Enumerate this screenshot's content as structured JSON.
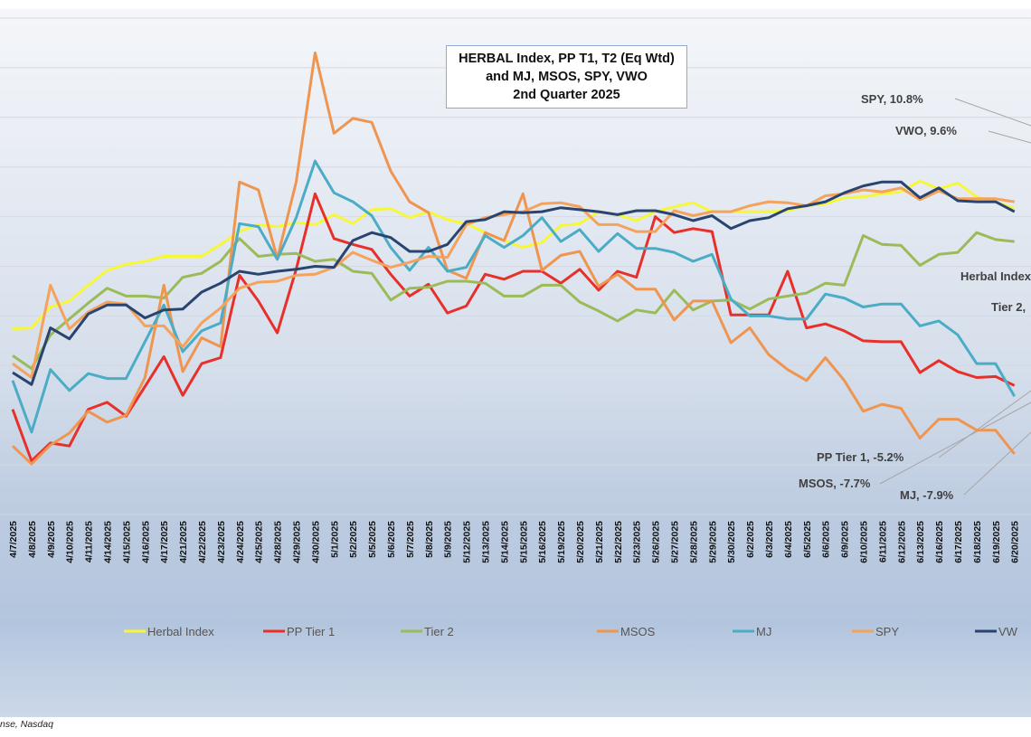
{
  "chart_data": {
    "type": "line",
    "title": [
      "HERBAL Index, PP T1, T2  (Eq Wtd)",
      "and MJ, MSOS, SPY, VWO",
      "2nd Quarter 2025"
    ],
    "xlabel": "",
    "ylabel": "",
    "y_unit": "%",
    "ylim": [
      -25,
      25
    ],
    "grid": true,
    "y_tick_labels_shown": false,
    "legend_position": "bottom",
    "categories": [
      "4/7/2025",
      "4/8/2025",
      "4/9/2025",
      "4/10/2025",
      "4/11/2025",
      "4/14/2025",
      "4/15/2025",
      "4/16/2025",
      "4/17/2025",
      "4/21/2025",
      "4/22/2025",
      "4/23/2025",
      "4/24/2025",
      "4/25/2025",
      "4/28/2025",
      "4/29/2025",
      "4/30/2025",
      "5/1/2025",
      "5/2/2025",
      "5/5/2025",
      "5/6/2025",
      "5/7/2025",
      "5/8/2025",
      "5/9/2025",
      "5/12/2025",
      "5/13/2025",
      "5/14/2025",
      "5/15/2025",
      "5/16/2025",
      "5/19/2025",
      "5/20/2025",
      "5/21/2025",
      "5/22/2025",
      "5/23/2025",
      "5/26/2025",
      "5/27/2025",
      "5/28/2025",
      "5/29/2025",
      "5/30/2025",
      "6/2/2025",
      "6/3/2025",
      "6/4/2025",
      "6/5/2025",
      "6/6/2025",
      "6/9/2025",
      "6/10/2025",
      "6/11/2025",
      "6/12/2025",
      "6/13/2025",
      "6/16/2025",
      "6/17/2025",
      "6/18/2025",
      "6/19/2025",
      "6/20/2025"
    ],
    "series": [
      {
        "name": "Herbal Index",
        "color": "#f7f73a",
        "values": [
          -6.3,
          -6.2,
          -4.1,
          -3.5,
          -1.9,
          -0.4,
          0.2,
          0.5,
          1.0,
          1.0,
          1.0,
          2.2,
          3.5,
          4.2,
          4.0,
          4.4,
          4.2,
          5.2,
          4.3,
          5.7,
          5.8,
          4.9,
          5.5,
          4.7,
          4.3,
          3.4,
          2.6,
          1.9,
          2.4,
          4.1,
          4.3,
          5.5,
          5.2,
          4.6,
          5.5,
          6.0,
          6.4,
          5.5,
          5.5,
          5.5,
          5.5,
          5.6,
          6.1,
          6.3,
          6.9,
          7.0,
          7.3,
          7.5,
          8.6,
          7.8,
          8.4,
          7.0,
          6.5,
          5.8
        ]
      },
      {
        "name": "PP Tier 1",
        "color": "#e8302a",
        "values": [
          -14.4,
          -19.6,
          -17.8,
          -18.1,
          -14.4,
          -13.7,
          -15.1,
          -12.1,
          -9.1,
          -13.0,
          -9.8,
          -9.2,
          -0.9,
          -3.5,
          -6.7,
          -0.3,
          7.3,
          2.8,
          2.2,
          1.7,
          -0.8,
          -3.0,
          -1.8,
          -4.7,
          -4.0,
          -0.8,
          -1.3,
          -0.5,
          -0.5,
          -1.7,
          -0.3,
          -2.4,
          -0.5,
          -1.1,
          5.0,
          3.4,
          3.8,
          3.5,
          -4.9,
          -4.9,
          -4.9,
          -0.5,
          -6.2,
          -5.8,
          -6.5,
          -7.5,
          -7.6,
          -7.6,
          -10.7,
          -9.5,
          -10.6,
          -11.2,
          -11.1,
          -12.0
        ]
      },
      {
        "name": "Tier 2",
        "color": "#9bbb59",
        "values": [
          -9.0,
          -10.3,
          -6.9,
          -5.3,
          -3.7,
          -2.2,
          -3.0,
          -3.0,
          -3.2,
          -1.1,
          -0.7,
          0.5,
          2.8,
          1.0,
          1.2,
          1.3,
          0.5,
          0.7,
          -0.5,
          -0.7,
          -3.4,
          -2.2,
          -2.1,
          -1.5,
          -1.5,
          -1.7,
          -3.0,
          -3.0,
          -1.9,
          -1.9,
          -3.6,
          -4.5,
          -5.5,
          -4.4,
          -4.7,
          -2.4,
          -4.4,
          -3.5,
          -3.4,
          -4.3,
          -3.3,
          -3.0,
          -2.7,
          -1.7,
          -1.9,
          3.1,
          2.2,
          2.1,
          0.1,
          1.2,
          1.4,
          3.4,
          2.7,
          2.5
        ]
      },
      {
        "name": "MSOS",
        "color": "#ef9550",
        "values": [
          -18.1,
          -19.9,
          -18.0,
          -16.8,
          -14.6,
          -15.7,
          -15.0,
          -11.2,
          -1.9,
          -10.6,
          -7.2,
          -8.1,
          8.5,
          7.7,
          0.8,
          8.5,
          21.5,
          13.4,
          14.9,
          14.5,
          9.6,
          6.5,
          5.4,
          -0.4,
          -1.2,
          3.4,
          2.6,
          7.3,
          -0.4,
          1.1,
          1.5,
          -2.0,
          -0.8,
          -2.3,
          -2.3,
          -5.4,
          -3.5,
          -3.5,
          -7.7,
          -6.2,
          -8.9,
          -10.4,
          -11.5,
          -9.2,
          -11.5,
          -14.6,
          -13.9,
          -14.3,
          -17.3,
          -15.4,
          -15.4,
          -16.5,
          -16.5,
          -18.9
        ]
      },
      {
        "name": "MJ",
        "color": "#4bacc6",
        "values": [
          -11.5,
          -16.7,
          -10.4,
          -12.5,
          -10.8,
          -11.3,
          -11.3,
          -7.6,
          -3.9,
          -8.6,
          -6.5,
          -5.7,
          4.3,
          4.0,
          0.7,
          4.9,
          10.6,
          7.4,
          6.5,
          5.1,
          1.9,
          -0.4,
          1.9,
          -0.5,
          -0.1,
          3.1,
          1.9,
          3.1,
          4.9,
          2.5,
          3.7,
          1.5,
          3.3,
          1.8,
          1.8,
          1.4,
          0.5,
          1.2,
          -3.3,
          -5.0,
          -5.0,
          -5.3,
          -5.3,
          -2.8,
          -3.2,
          -4.1,
          -3.8,
          -3.8,
          -6.0,
          -5.5,
          -6.9,
          -9.8,
          -9.8,
          -13.1
        ]
      },
      {
        "name": "SPY",
        "color": "#f4a25c",
        "values": [
          -9.8,
          -11.2,
          -1.9,
          -6.3,
          -4.6,
          -3.6,
          -3.8,
          -6.0,
          -6.0,
          -8.1,
          -5.7,
          -4.2,
          -2.2,
          -1.6,
          -1.5,
          -0.9,
          -0.8,
          -0.1,
          1.4,
          0.6,
          -0.1,
          0.4,
          1.0,
          0.9,
          4.2,
          4.9,
          5.2,
          5.5,
          6.3,
          6.4,
          6.0,
          4.2,
          4.2,
          3.5,
          3.5,
          5.6,
          5.1,
          5.5,
          5.5,
          6.1,
          6.5,
          6.4,
          6.1,
          7.1,
          7.3,
          7.7,
          7.5,
          7.9,
          6.7,
          7.6,
          6.8,
          6.8,
          6.8,
          6.5
        ]
      },
      {
        "name": "VWO",
        "color": "#2a4470",
        "values": [
          -10.7,
          -11.9,
          -6.2,
          -7.3,
          -4.8,
          -3.9,
          -3.9,
          -5.2,
          -4.4,
          -4.3,
          -2.6,
          -1.7,
          -0.5,
          -0.8,
          -0.5,
          -0.3,
          0.0,
          -0.1,
          2.6,
          3.4,
          2.9,
          1.5,
          1.5,
          2.2,
          4.5,
          4.7,
          5.5,
          5.4,
          5.5,
          5.9,
          5.7,
          5.5,
          5.2,
          5.6,
          5.6,
          5.2,
          4.6,
          5.1,
          3.8,
          4.6,
          4.9,
          5.8,
          6.1,
          6.5,
          7.4,
          8.1,
          8.5,
          8.5,
          6.9,
          7.9,
          6.6,
          6.5,
          6.5,
          5.5
        ]
      }
    ],
    "legend": [
      "Herbal Index",
      "PP Tier 1",
      "Tier 2",
      "MSOS",
      "MJ",
      "SPY",
      "VW"
    ],
    "annotations": {
      "spy": "SPY, 10.8%",
      "vwo": "VWO, 9.6%",
      "herbal": "Herbal Index",
      "tier2": "Tier 2,",
      "pp_tier1": "PP Tier 1, -5.2%",
      "msos": "MSOS, -7.7%",
      "mj": "MJ, -7.9%"
    }
  },
  "source": "nse, Nasdaq"
}
